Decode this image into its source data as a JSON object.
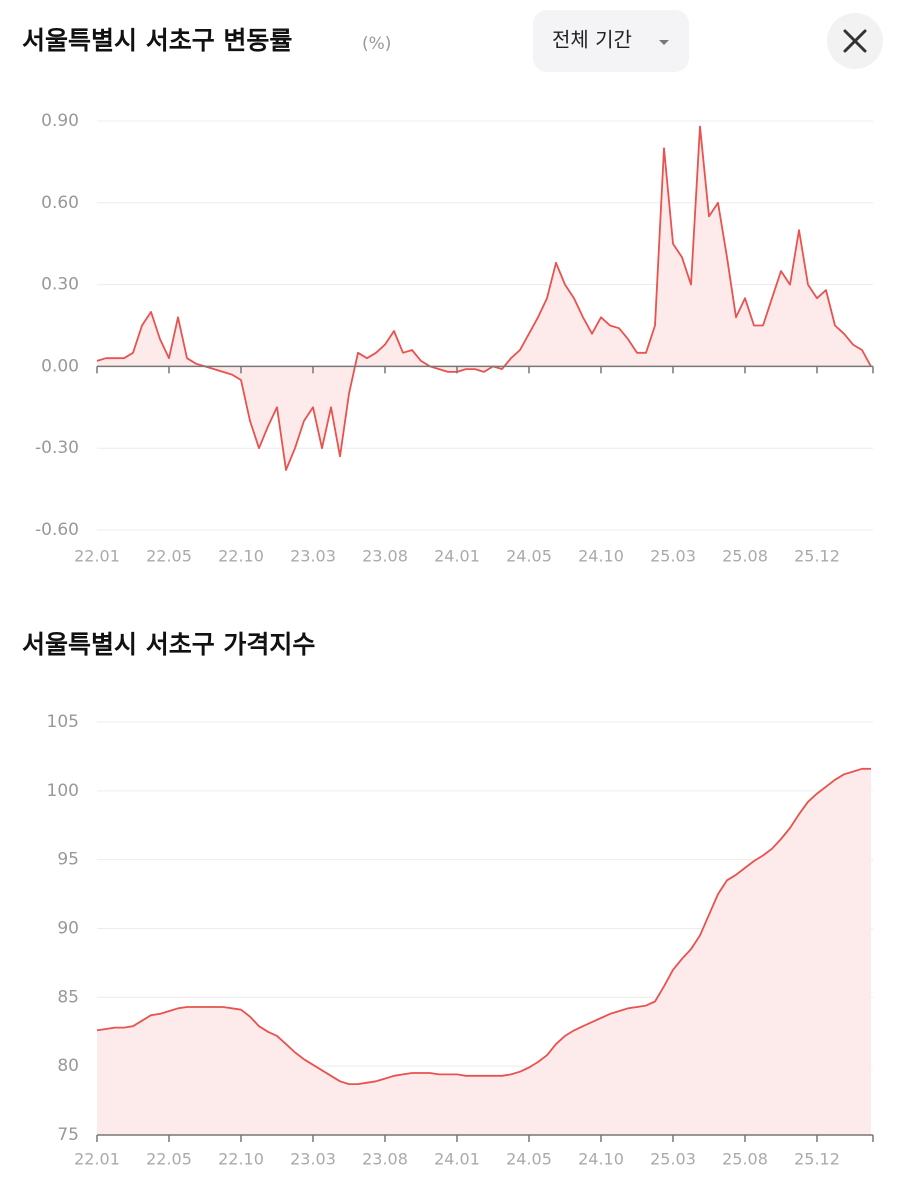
{
  "header": {
    "period_button": "전체 기간"
  },
  "chart_data": [
    {
      "type": "line",
      "title": "서울특별시 서초구 변동률",
      "unit": "(%)",
      "categories": [
        "22.01",
        null,
        null,
        null,
        null,
        null,
        null,
        null,
        "22.05",
        null,
        null,
        null,
        null,
        null,
        null,
        null,
        "22.10",
        null,
        null,
        null,
        null,
        null,
        null,
        null,
        "23.03",
        null,
        null,
        null,
        null,
        null,
        null,
        null,
        "23.08",
        null,
        null,
        null,
        null,
        null,
        null,
        null,
        "24.01",
        null,
        null,
        null,
        null,
        null,
        null,
        null,
        "24.05",
        null,
        null,
        null,
        null,
        null,
        null,
        null,
        "24.10",
        null,
        null,
        null,
        null,
        null,
        null,
        null,
        "25.03",
        null,
        null,
        null,
        null,
        null,
        null,
        null,
        "25.08",
        null,
        null,
        null,
        null,
        null,
        null,
        null,
        "25.12",
        null,
        null,
        null,
        null,
        null,
        null
      ],
      "series": [
        {
          "color": "#e8524f",
          "values": [
            0.02,
            0.03,
            0.03,
            0.03,
            0.05,
            0.15,
            0.2,
            0.1,
            0.03,
            0.18,
            0.03,
            0.01,
            0.0,
            -0.01,
            -0.02,
            -0.03,
            -0.05,
            -0.2,
            -0.3,
            -0.22,
            -0.15,
            -0.38,
            -0.3,
            -0.2,
            -0.15,
            -0.3,
            -0.15,
            -0.33,
            -0.1,
            0.05,
            0.03,
            0.05,
            0.08,
            0.13,
            0.05,
            0.06,
            0.02,
            0.0,
            -0.01,
            -0.02,
            -0.02,
            -0.01,
            -0.01,
            -0.02,
            0.0,
            -0.01,
            0.03,
            0.06,
            0.12,
            0.18,
            0.25,
            0.38,
            0.3,
            0.25,
            0.18,
            0.12,
            0.18,
            0.15,
            0.14,
            0.1,
            0.05,
            0.05,
            0.15,
            0.8,
            0.45,
            0.4,
            0.3,
            0.88,
            0.55,
            0.6,
            0.4,
            0.18,
            0.25,
            0.15,
            0.15,
            0.25,
            0.35,
            0.3,
            0.5,
            0.3,
            0.25,
            0.28,
            0.15,
            0.12,
            0.08,
            0.06,
            0.0
          ]
        }
      ],
      "ylim": [
        -0.6,
        0.9
      ],
      "yticks": [
        {
          "value": -0.6,
          "label": "-0.60"
        },
        {
          "value": -0.3,
          "label": "-0.30"
        },
        {
          "value": 0,
          "label": "0.00"
        },
        {
          "value": 0.3,
          "label": "0.30"
        },
        {
          "value": 0.6,
          "label": "0.60"
        },
        {
          "value": 0.9,
          "label": "0.90"
        }
      ],
      "grid": true,
      "fill_color": "#fdeaea"
    },
    {
      "type": "line",
      "title": "서울특별시 서초구 가격지수",
      "categories": [
        "22.01",
        null,
        null,
        null,
        null,
        null,
        null,
        null,
        "22.05",
        null,
        null,
        null,
        null,
        null,
        null,
        null,
        "22.10",
        null,
        null,
        null,
        null,
        null,
        null,
        null,
        "23.03",
        null,
        null,
        null,
        null,
        null,
        null,
        null,
        "23.08",
        null,
        null,
        null,
        null,
        null,
        null,
        null,
        "24.01",
        null,
        null,
        null,
        null,
        null,
        null,
        null,
        "24.05",
        null,
        null,
        null,
        null,
        null,
        null,
        null,
        "24.10",
        null,
        null,
        null,
        null,
        null,
        null,
        null,
        "25.03",
        null,
        null,
        null,
        null,
        null,
        null,
        null,
        "25.08",
        null,
        null,
        null,
        null,
        null,
        null,
        null,
        "25.12",
        null,
        null,
        null,
        null,
        null,
        null
      ],
      "series": [
        {
          "color": "#e8524f",
          "values": [
            82.6,
            82.7,
            82.8,
            82.8,
            82.9,
            83.3,
            83.7,
            83.8,
            84.0,
            84.2,
            84.3,
            84.3,
            84.3,
            84.3,
            84.3,
            84.2,
            84.1,
            83.6,
            82.9,
            82.5,
            82.2,
            81.6,
            81.0,
            80.5,
            80.1,
            79.7,
            79.3,
            78.9,
            78.7,
            78.7,
            78.8,
            78.9,
            79.1,
            79.3,
            79.4,
            79.5,
            79.5,
            79.5,
            79.4,
            79.4,
            79.4,
            79.3,
            79.3,
            79.3,
            79.3,
            79.3,
            79.4,
            79.6,
            79.9,
            80.3,
            80.8,
            81.6,
            82.2,
            82.6,
            82.9,
            83.2,
            83.5,
            83.8,
            84.0,
            84.2,
            84.3,
            84.4,
            84.7,
            85.8,
            87.0,
            87.8,
            88.5,
            89.5,
            91.0,
            92.5,
            93.5,
            93.9,
            94.4,
            94.9,
            95.3,
            95.8,
            96.5,
            97.3,
            98.3,
            99.2,
            99.8,
            100.3,
            100.8,
            101.2,
            101.4,
            101.6,
            101.6
          ]
        }
      ],
      "ylim": [
        75,
        105
      ],
      "yticks": [
        75,
        80,
        85,
        90,
        95,
        100,
        105
      ],
      "grid": true,
      "fill_color": "#fdeaea"
    }
  ]
}
